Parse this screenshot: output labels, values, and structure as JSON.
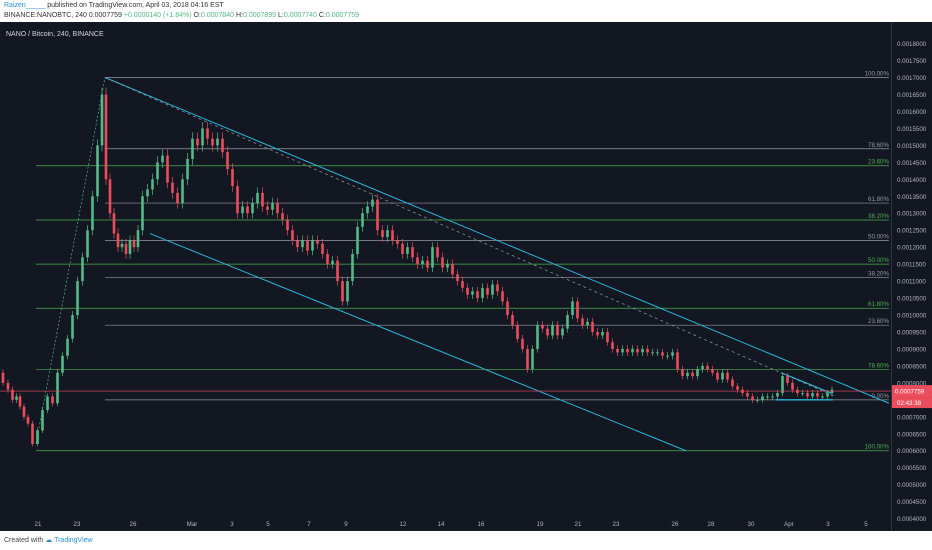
{
  "header": {
    "author": "Raizen_____",
    "published_text": "published on TradingView.com, April 03, 2018 04:16 EST",
    "ticker": "BINANCE:NANOBTC, 240",
    "last": "0.0007759",
    "change": "+0.0000140 (+1.84%)",
    "open_label": "O:",
    "open": "0.0007840",
    "high_label": "H:",
    "high": "0.0007899",
    "low_label": "L:",
    "low": "0.0007740",
    "close_label": "C:",
    "close": "0.0007759"
  },
  "footer": {
    "created_with": "Created with",
    "brand": "TradingView"
  },
  "chart_data": {
    "type": "candlestick",
    "title": "NANO / Bitcoin, 240, BINANCE",
    "y_axis": {
      "range": [
        0.00039,
        0.00184
      ],
      "ticks": [
        "0.0018000",
        "0.0017500",
        "0.0017000",
        "0.0016500",
        "0.0016000",
        "0.0015500",
        "0.0015000",
        "0.0014500",
        "0.0014000",
        "0.0013500",
        "0.0013000",
        "0.0012500",
        "0.0012000",
        "0.0011500",
        "0.0011000",
        "0.0010500",
        "0.0010000",
        "0.0009500",
        "0.0009000",
        "0.0008500",
        "0.0008000",
        "0.0007500",
        "0.0007000",
        "0.0006500",
        "0.0006000",
        "0.0005500",
        "0.0005000",
        "0.0004500",
        "0.0004000"
      ],
      "price_badge": "0.0007759",
      "countdown_badge": "02:43:38"
    },
    "x_axis": {
      "ticks": [
        "21",
        "23",
        "26",
        "Mar",
        "3",
        "5",
        "7",
        "9",
        "12",
        "14",
        "16",
        "19",
        "21",
        "23",
        "26",
        "28",
        "30",
        "Apr",
        "3",
        "5"
      ]
    },
    "fib_upper": {
      "levels": [
        {
          "label": "100.00%",
          "price": 0.0017
        },
        {
          "label": "78.60%",
          "price": 0.00149
        },
        {
          "label": "61.80%",
          "price": 0.00133
        },
        {
          "label": "50.00%",
          "price": 0.00122
        },
        {
          "label": "38.20%",
          "price": 0.00111
        },
        {
          "label": "23.60%",
          "price": 0.00097
        },
        {
          "label": "0.00%",
          "price": 0.00075
        }
      ]
    },
    "fib_lower": {
      "levels": [
        {
          "label": "23.60%",
          "price": 0.00144
        },
        {
          "label": "38.20%",
          "price": 0.00128
        },
        {
          "label": "50.00%",
          "price": 0.00115
        },
        {
          "label": "61.80%",
          "price": 0.00102
        },
        {
          "label": "78.60%",
          "price": 0.00084
        },
        {
          "label": "100.00%",
          "price": 0.0006
        }
      ]
    },
    "series": [
      {
        "x": 0,
        "price": 0.00083
      },
      {
        "x": 6,
        "price": 0.0008
      },
      {
        "x": 10,
        "price": 0.00078
      },
      {
        "x": 15,
        "price": 0.00075
      },
      {
        "x": 18,
        "price": 0.00076
      },
      {
        "x": 22,
        "price": 0.00073
      },
      {
        "x": 26,
        "price": 0.0007
      },
      {
        "x": 30,
        "price": 0.00068
      },
      {
        "x": 35,
        "price": 0.00062
      },
      {
        "x": 40,
        "price": 0.00066
      },
      {
        "x": 45,
        "price": 0.00072
      },
      {
        "x": 50,
        "price": 0.00076
      },
      {
        "x": 55,
        "price": 0.00074
      },
      {
        "x": 60,
        "price": 0.00083
      },
      {
        "x": 65,
        "price": 0.00088
      },
      {
        "x": 70,
        "price": 0.00093
      },
      {
        "x": 75,
        "price": 0.001
      },
      {
        "x": 80,
        "price": 0.0011
      },
      {
        "x": 85,
        "price": 0.00117
      },
      {
        "x": 90,
        "price": 0.00125
      },
      {
        "x": 95,
        "price": 0.00135
      },
      {
        "x": 100,
        "price": 0.0015
      },
      {
        "x": 104,
        "price": 0.00165
      },
      {
        "x": 108,
        "price": 0.0014
      },
      {
        "x": 112,
        "price": 0.0013
      },
      {
        "x": 116,
        "price": 0.00124
      },
      {
        "x": 120,
        "price": 0.0012
      },
      {
        "x": 124,
        "price": 0.00121
      },
      {
        "x": 128,
        "price": 0.00118
      },
      {
        "x": 132,
        "price": 0.00122
      },
      {
        "x": 136,
        "price": 0.0012
      },
      {
        "x": 140,
        "price": 0.00125
      },
      {
        "x": 145,
        "price": 0.00135
      },
      {
        "x": 150,
        "price": 0.00137
      },
      {
        "x": 155,
        "price": 0.0014
      },
      {
        "x": 160,
        "price": 0.00145
      },
      {
        "x": 165,
        "price": 0.00147
      },
      {
        "x": 170,
        "price": 0.00139
      },
      {
        "x": 175,
        "price": 0.00136
      },
      {
        "x": 180,
        "price": 0.00133
      },
      {
        "x": 185,
        "price": 0.0014
      },
      {
        "x": 190,
        "price": 0.00146
      },
      {
        "x": 195,
        "price": 0.00152
      },
      {
        "x": 200,
        "price": 0.0015
      },
      {
        "x": 205,
        "price": 0.00155
      },
      {
        "x": 210,
        "price": 0.00152
      },
      {
        "x": 215,
        "price": 0.0015
      },
      {
        "x": 220,
        "price": 0.00152
      },
      {
        "x": 225,
        "price": 0.00148
      },
      {
        "x": 230,
        "price": 0.00143
      },
      {
        "x": 235,
        "price": 0.00138
      },
      {
        "x": 240,
        "price": 0.0013
      },
      {
        "x": 245,
        "price": 0.00132
      },
      {
        "x": 250,
        "price": 0.0013
      },
      {
        "x": 255,
        "price": 0.00133
      },
      {
        "x": 260,
        "price": 0.00136
      },
      {
        "x": 265,
        "price": 0.00132
      },
      {
        "x": 270,
        "price": 0.00131
      },
      {
        "x": 275,
        "price": 0.00133
      },
      {
        "x": 280,
        "price": 0.0013
      },
      {
        "x": 285,
        "price": 0.00128
      },
      {
        "x": 290,
        "price": 0.00125
      },
      {
        "x": 295,
        "price": 0.00122
      },
      {
        "x": 300,
        "price": 0.0012
      },
      {
        "x": 305,
        "price": 0.00122
      },
      {
        "x": 310,
        "price": 0.00119
      },
      {
        "x": 315,
        "price": 0.00122
      },
      {
        "x": 320,
        "price": 0.00121
      },
      {
        "x": 325,
        "price": 0.00118
      },
      {
        "x": 330,
        "price": 0.00115
      },
      {
        "x": 335,
        "price": 0.00116
      },
      {
        "x": 340,
        "price": 0.0011
      },
      {
        "x": 345,
        "price": 0.00104
      },
      {
        "x": 350,
        "price": 0.0011
      },
      {
        "x": 355,
        "price": 0.00118
      },
      {
        "x": 360,
        "price": 0.00126
      },
      {
        "x": 365,
        "price": 0.0013
      },
      {
        "x": 370,
        "price": 0.00132
      },
      {
        "x": 375,
        "price": 0.00134
      },
      {
        "x": 380,
        "price": 0.00125
      },
      {
        "x": 385,
        "price": 0.00123
      },
      {
        "x": 390,
        "price": 0.00125
      },
      {
        "x": 395,
        "price": 0.00122
      },
      {
        "x": 400,
        "price": 0.00121
      },
      {
        "x": 405,
        "price": 0.00118
      },
      {
        "x": 410,
        "price": 0.0012
      },
      {
        "x": 415,
        "price": 0.00117
      },
      {
        "x": 420,
        "price": 0.00115
      },
      {
        "x": 425,
        "price": 0.00116
      },
      {
        "x": 430,
        "price": 0.00114
      },
      {
        "x": 435,
        "price": 0.0012
      },
      {
        "x": 440,
        "price": 0.00117
      },
      {
        "x": 445,
        "price": 0.00114
      },
      {
        "x": 450,
        "price": 0.00115
      },
      {
        "x": 455,
        "price": 0.00112
      },
      {
        "x": 460,
        "price": 0.0011
      },
      {
        "x": 465,
        "price": 0.00108
      },
      {
        "x": 470,
        "price": 0.00106
      },
      {
        "x": 475,
        "price": 0.00107
      },
      {
        "x": 480,
        "price": 0.00105
      },
      {
        "x": 485,
        "price": 0.00108
      },
      {
        "x": 490,
        "price": 0.00106
      },
      {
        "x": 495,
        "price": 0.00109
      },
      {
        "x": 500,
        "price": 0.00107
      },
      {
        "x": 505,
        "price": 0.00104
      },
      {
        "x": 510,
        "price": 0.001
      },
      {
        "x": 515,
        "price": 0.00097
      },
      {
        "x": 520,
        "price": 0.00093
      },
      {
        "x": 525,
        "price": 0.0009
      },
      {
        "x": 530,
        "price": 0.00084
      },
      {
        "x": 535,
        "price": 0.0009
      },
      {
        "x": 540,
        "price": 0.00097
      },
      {
        "x": 545,
        "price": 0.00096
      },
      {
        "x": 550,
        "price": 0.00094
      },
      {
        "x": 555,
        "price": 0.00097
      },
      {
        "x": 560,
        "price": 0.00094
      },
      {
        "x": 565,
        "price": 0.00096
      },
      {
        "x": 570,
        "price": 0.001
      },
      {
        "x": 575,
        "price": 0.00104
      },
      {
        "x": 580,
        "price": 0.00099
      },
      {
        "x": 585,
        "price": 0.00097
      },
      {
        "x": 590,
        "price": 0.00098
      },
      {
        "x": 595,
        "price": 0.00095
      },
      {
        "x": 600,
        "price": 0.00094
      },
      {
        "x": 605,
        "price": 0.00095
      },
      {
        "x": 610,
        "price": 0.00092
      },
      {
        "x": 615,
        "price": 0.0009
      },
      {
        "x": 620,
        "price": 0.00089
      },
      {
        "x": 625,
        "price": 0.0009
      },
      {
        "x": 630,
        "price": 0.00089
      },
      {
        "x": 635,
        "price": 0.0009
      },
      {
        "x": 640,
        "price": 0.00089
      },
      {
        "x": 645,
        "price": 0.0009
      },
      {
        "x": 650,
        "price": 0.00089
      },
      {
        "x": 655,
        "price": 0.00089
      },
      {
        "x": 660,
        "price": 0.00089
      },
      {
        "x": 665,
        "price": 0.00088
      },
      {
        "x": 670,
        "price": 0.00088
      },
      {
        "x": 675,
        "price": 0.00089
      },
      {
        "x": 680,
        "price": 0.00084
      },
      {
        "x": 685,
        "price": 0.00082
      },
      {
        "x": 690,
        "price": 0.00083
      },
      {
        "x": 695,
        "price": 0.00082
      },
      {
        "x": 700,
        "price": 0.00084
      },
      {
        "x": 705,
        "price": 0.00085
      },
      {
        "x": 710,
        "price": 0.00084
      },
      {
        "x": 715,
        "price": 0.00083
      },
      {
        "x": 720,
        "price": 0.00081
      },
      {
        "x": 725,
        "price": 0.00083
      },
      {
        "x": 730,
        "price": 0.00081
      },
      {
        "x": 735,
        "price": 0.00079
      },
      {
        "x": 740,
        "price": 0.00078
      },
      {
        "x": 745,
        "price": 0.00077
      },
      {
        "x": 750,
        "price": 0.00076
      },
      {
        "x": 755,
        "price": 0.00075
      },
      {
        "x": 760,
        "price": 0.00075
      },
      {
        "x": 765,
        "price": 0.00076
      },
      {
        "x": 770,
        "price": 0.00076
      },
      {
        "x": 775,
        "price": 0.00076
      },
      {
        "x": 780,
        "price": 0.00077
      },
      {
        "x": 785,
        "price": 0.00082
      },
      {
        "x": 790,
        "price": 0.0008
      },
      {
        "x": 795,
        "price": 0.00078
      },
      {
        "x": 800,
        "price": 0.00077
      },
      {
        "x": 805,
        "price": 0.00077
      },
      {
        "x": 810,
        "price": 0.00076
      },
      {
        "x": 815,
        "price": 0.00077
      },
      {
        "x": 820,
        "price": 0.00076
      },
      {
        "x": 825,
        "price": 0.00076
      },
      {
        "x": 830,
        "price": 0.00077
      },
      {
        "x": 834,
        "price": 0.00078
      }
    ],
    "colors": {
      "up": "#53b987",
      "down": "#eb4d5c",
      "fib_grey": "#9598a1",
      "fib_green": "#4caf50",
      "channel": "#29b6d6",
      "background": "#131722",
      "price_line": "#eb4d5c"
    }
  }
}
